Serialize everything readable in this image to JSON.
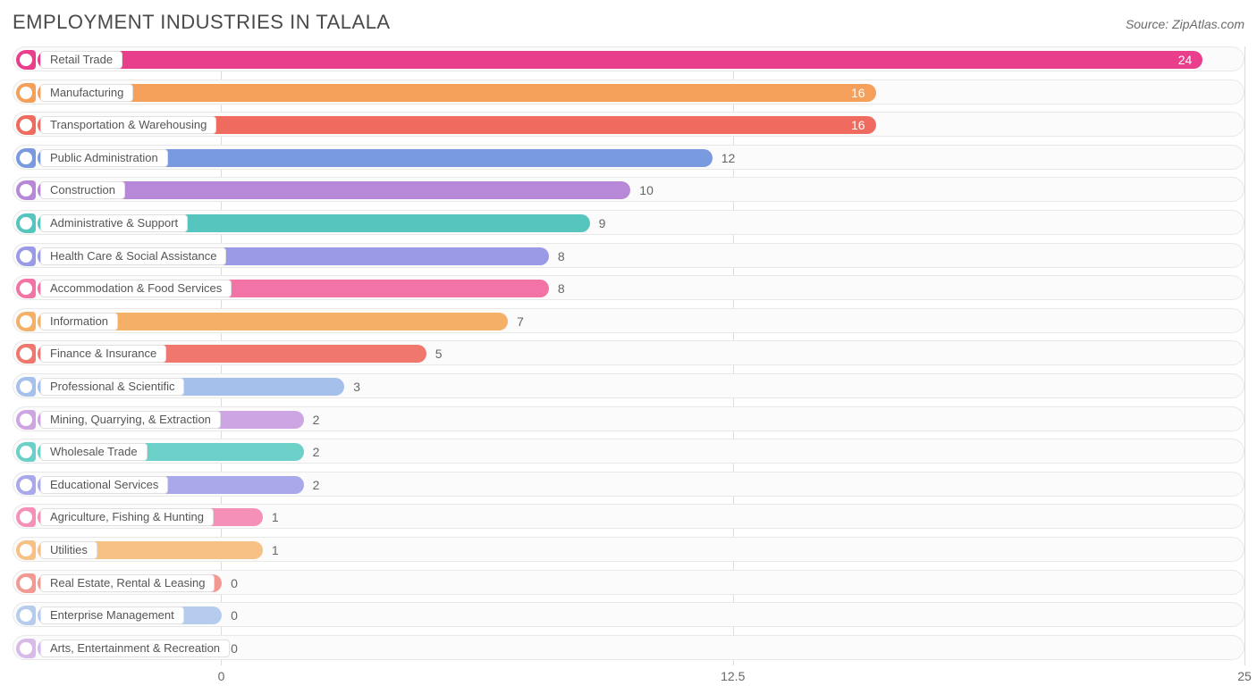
{
  "header": {
    "title": "EMPLOYMENT INDUSTRIES IN TALALA",
    "source": "Source: ZipAtlas.com"
  },
  "chart": {
    "type": "horizontal-bar",
    "background_color": "#ffffff",
    "track_bg": "#fbfbfb",
    "track_border": "#e8e8e8",
    "grid_color": "#dcdcdc",
    "label_bg": "#ffffff",
    "label_border": "#e0e0e0",
    "label_color": "#555555",
    "value_color": "#666666",
    "title_color": "#4a4a4a",
    "title_fontsize": 22,
    "label_fontsize": 13,
    "value_fontsize": 14,
    "xmin": -5.1,
    "xmax": 25,
    "xticks": [
      0,
      12.5,
      25
    ],
    "bar_start_value": -4.5,
    "bars": [
      {
        "label": "Retail Trade",
        "value": 24,
        "color": "#e83e8c",
        "value_inside": true,
        "value_text_color": "#ffffff"
      },
      {
        "label": "Manufacturing",
        "value": 16,
        "color": "#f5a05a",
        "value_inside": true,
        "value_text_color": "#ffffff"
      },
      {
        "label": "Transportation & Warehousing",
        "value": 16,
        "color": "#ef6a5f",
        "value_inside": true,
        "value_text_color": "#ffffff"
      },
      {
        "label": "Public Administration",
        "value": 12,
        "color": "#7a9ae0",
        "value_inside": false,
        "value_text_color": "#666666"
      },
      {
        "label": "Construction",
        "value": 10,
        "color": "#b888d8",
        "value_inside": false,
        "value_text_color": "#666666"
      },
      {
        "label": "Administrative & Support",
        "value": 9,
        "color": "#55c5bd",
        "value_inside": false,
        "value_text_color": "#666666"
      },
      {
        "label": "Health Care & Social Assistance",
        "value": 8,
        "color": "#9a9ae6",
        "value_inside": false,
        "value_text_color": "#666666"
      },
      {
        "label": "Accommodation & Food Services",
        "value": 8,
        "color": "#f273a5",
        "value_inside": false,
        "value_text_color": "#666666"
      },
      {
        "label": "Information",
        "value": 7,
        "color": "#f5b068",
        "value_inside": false,
        "value_text_color": "#666666"
      },
      {
        "label": "Finance & Insurance",
        "value": 5,
        "color": "#ef776d",
        "value_inside": false,
        "value_text_color": "#666666"
      },
      {
        "label": "Professional & Scientific",
        "value": 3,
        "color": "#a5c0ea",
        "value_inside": false,
        "value_text_color": "#666666"
      },
      {
        "label": "Mining, Quarrying, & Extraction",
        "value": 2,
        "color": "#cda5e2",
        "value_inside": false,
        "value_text_color": "#666666"
      },
      {
        "label": "Wholesale Trade",
        "value": 2,
        "color": "#6ad0c8",
        "value_inside": false,
        "value_text_color": "#666666"
      },
      {
        "label": "Educational Services",
        "value": 2,
        "color": "#a8a8ea",
        "value_inside": false,
        "value_text_color": "#666666"
      },
      {
        "label": "Agriculture, Fishing & Hunting",
        "value": 1,
        "color": "#f590b9",
        "value_inside": false,
        "value_text_color": "#666666"
      },
      {
        "label": "Utilities",
        "value": 1,
        "color": "#f7c084",
        "value_inside": false,
        "value_text_color": "#666666"
      },
      {
        "label": "Real Estate, Rental & Leasing",
        "value": 0,
        "color": "#f29a92",
        "value_inside": false,
        "value_text_color": "#666666"
      },
      {
        "label": "Enterprise Management",
        "value": 0,
        "color": "#b6ccef",
        "value_inside": false,
        "value_text_color": "#666666"
      },
      {
        "label": "Arts, Entertainment & Recreation",
        "value": 0,
        "color": "#d7bae8",
        "value_inside": false,
        "value_text_color": "#666666"
      }
    ]
  }
}
